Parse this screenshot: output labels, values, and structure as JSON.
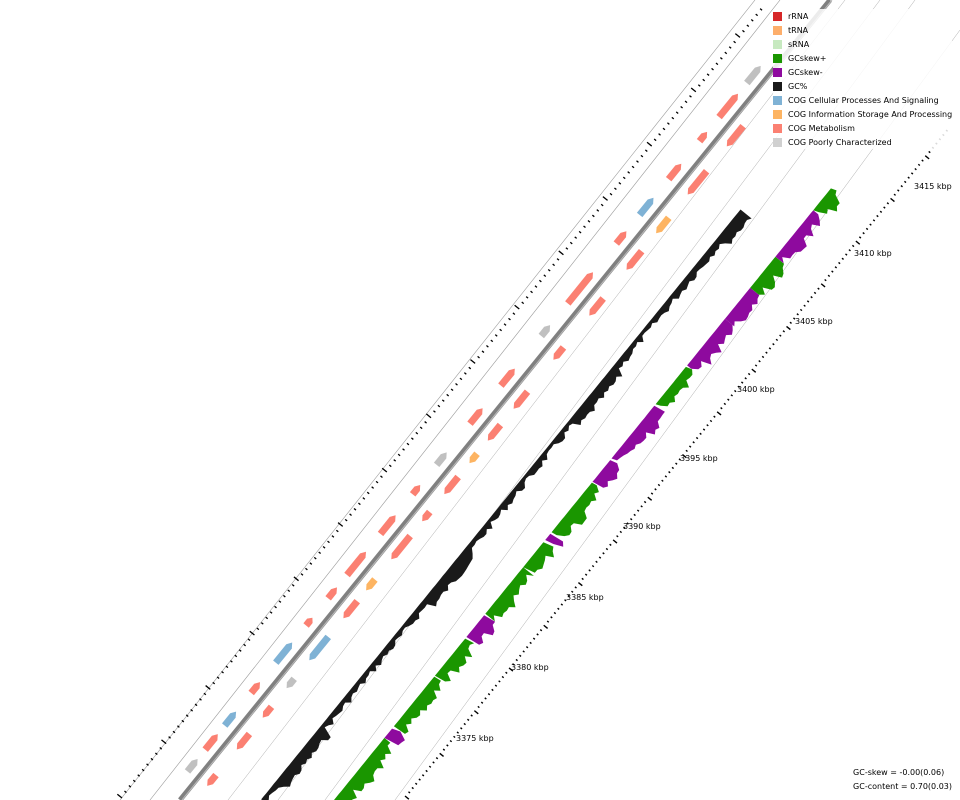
{
  "legend": [
    {
      "label": "rRNA",
      "color": "#d62728"
    },
    {
      "label": "tRNA",
      "color": "#fdae6b"
    },
    {
      "label": "sRNA",
      "color": "#c7e9c0"
    },
    {
      "label": "GCskew+",
      "color": "#1a9600"
    },
    {
      "label": "GCskew-",
      "color": "#8e0a9e"
    },
    {
      "label": "GC%",
      "color": "#1a1a1a"
    },
    {
      "label": "COG Cellular Processes And Signaling",
      "color": "#7fb2d5"
    },
    {
      "label": "COG Information Storage And Processing",
      "color": "#fdb462"
    },
    {
      "label": "COG Metabolism",
      "color": "#fb8072"
    },
    {
      "label": "COG Poorly Characterized",
      "color": "#d0d0d0"
    }
  ],
  "ticks": [
    "3375 kbp",
    "3380 kbp",
    "3385 kbp",
    "3390 kbp",
    "3395 kbp",
    "3400 kbp",
    "3405 kbp",
    "3410 kbp",
    "3415 kbp"
  ],
  "stats": {
    "gc_skew": "GC-skew = -0.00(0.06)",
    "gc_content": "GC-content = 0.70(0.03)"
  },
  "colors": {
    "backbone": "#808080",
    "metabolism": "#fb8072",
    "cellular": "#7fb2d5",
    "info": "#fdb462",
    "poorly": "#c0c0c0",
    "gc": "#1a1a1a",
    "skew_pos": "#1a9600",
    "skew_neg": "#8e0a9e"
  }
}
